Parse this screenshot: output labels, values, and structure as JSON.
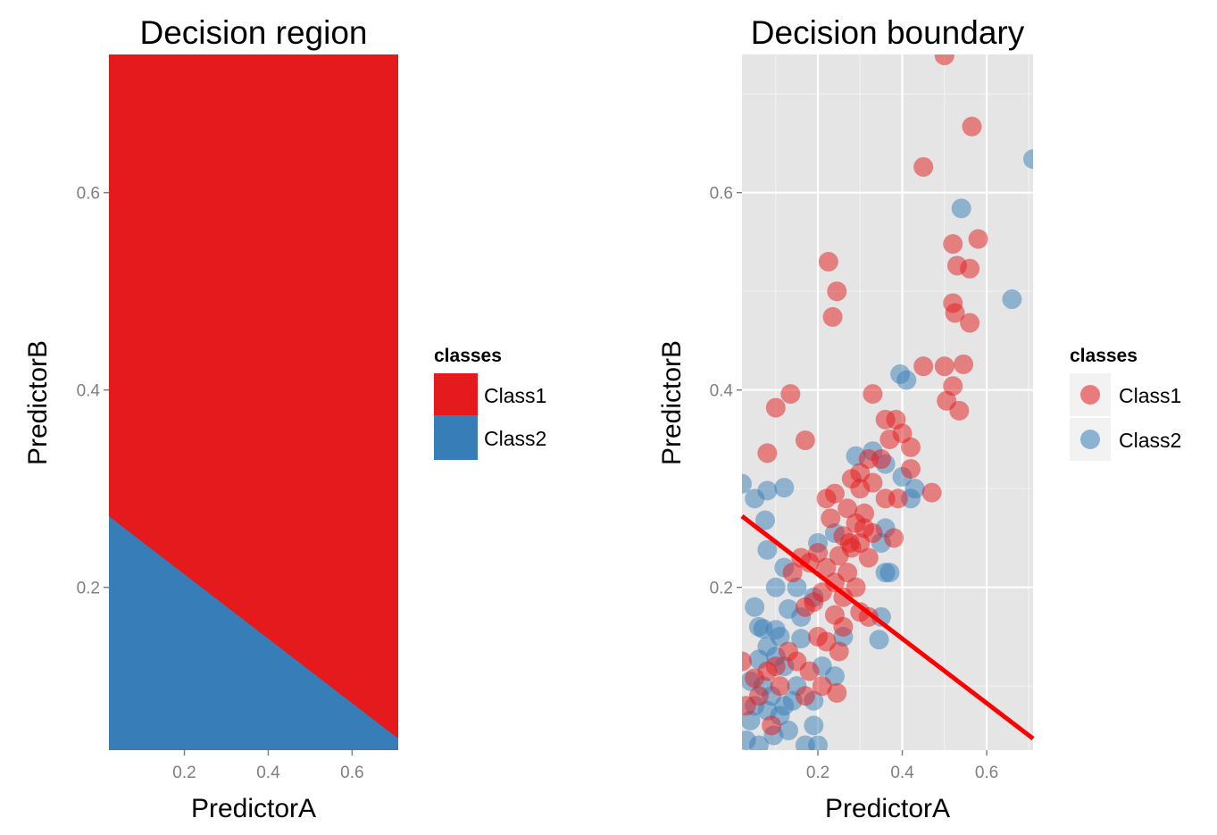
{
  "colors": {
    "class1": "#e41a1c",
    "class2": "#377eb8",
    "boundary": "#ff0000",
    "panel_bg": "#e5e5e5",
    "grid": "#ffffff",
    "tick_text": "#7f7f7f"
  },
  "chart_data": [
    {
      "type": "heatmap",
      "title": "Decision region",
      "xlabel": "PredictorA",
      "ylabel": "PredictorB",
      "xlim": [
        0.02,
        0.71
      ],
      "ylim": [
        0.035,
        0.74
      ],
      "x_ticks": [
        0.2,
        0.4,
        0.6
      ],
      "y_ticks": [
        0.2,
        0.4,
        0.6
      ],
      "x_tick_labels": [
        "0.2",
        "0.4",
        "0.6"
      ],
      "y_tick_labels": [
        "0.2",
        "0.4",
        "0.6"
      ],
      "boundary_line": {
        "intercept": 0.2786,
        "slope": -0.3266
      },
      "regions": [
        {
          "name": "Class1",
          "side": "above",
          "color": "#e41a1c"
        },
        {
          "name": "Class2",
          "side": "below",
          "color": "#377eb8"
        }
      ],
      "legend": {
        "title": "classes",
        "entries": [
          "Class1",
          "Class2"
        ],
        "position": "right"
      }
    },
    {
      "type": "scatter",
      "title": "Decision boundary",
      "xlabel": "PredictorA",
      "ylabel": "PredictorB",
      "xlim": [
        0.02,
        0.71
      ],
      "ylim": [
        0.035,
        0.74
      ],
      "x_ticks": [
        0.2,
        0.4,
        0.6
      ],
      "y_ticks": [
        0.2,
        0.4,
        0.6
      ],
      "x_tick_labels": [
        "0.2",
        "0.4",
        "0.6"
      ],
      "y_tick_labels": [
        "0.2",
        "0.4",
        "0.6"
      ],
      "grid": true,
      "boundary_line": {
        "intercept": 0.2786,
        "slope": -0.3266
      },
      "legend": {
        "title": "classes",
        "entries": [
          "Class1",
          "Class2"
        ],
        "position": "right"
      },
      "series": [
        {
          "name": "Class1",
          "color": "#e41a1c",
          "points": [
            [
              0.5,
              0.739
            ],
            [
              0.565,
              0.667
            ],
            [
              0.45,
              0.626
            ],
            [
              0.58,
              0.553
            ],
            [
              0.52,
              0.548
            ],
            [
              0.53,
              0.526
            ],
            [
              0.56,
              0.523
            ],
            [
              0.52,
              0.488
            ],
            [
              0.525,
              0.478
            ],
            [
              0.56,
              0.468
            ],
            [
              0.225,
              0.53
            ],
            [
              0.245,
              0.5
            ],
            [
              0.235,
              0.474
            ],
            [
              0.45,
              0.424
            ],
            [
              0.5,
              0.424
            ],
            [
              0.545,
              0.426
            ],
            [
              0.52,
              0.404
            ],
            [
              0.505,
              0.389
            ],
            [
              0.535,
              0.379
            ],
            [
              0.135,
              0.396
            ],
            [
              0.1,
              0.382
            ],
            [
              0.33,
              0.396
            ],
            [
              0.385,
              0.37
            ],
            [
              0.36,
              0.37
            ],
            [
              0.4,
              0.356
            ],
            [
              0.42,
              0.342
            ],
            [
              0.08,
              0.336
            ],
            [
              0.17,
              0.349
            ],
            [
              0.37,
              0.35
            ],
            [
              0.35,
              0.33
            ],
            [
              0.32,
              0.33
            ],
            [
              0.3,
              0.316
            ],
            [
              0.28,
              0.31
            ],
            [
              0.33,
              0.306
            ],
            [
              0.42,
              0.32
            ],
            [
              0.47,
              0.296
            ],
            [
              0.36,
              0.29
            ],
            [
              0.39,
              0.29
            ],
            [
              0.3,
              0.3
            ],
            [
              0.24,
              0.295
            ],
            [
              0.22,
              0.29
            ],
            [
              0.27,
              0.28
            ],
            [
              0.31,
              0.275
            ],
            [
              0.23,
              0.27
            ],
            [
              0.29,
              0.265
            ],
            [
              0.26,
              0.252
            ],
            [
              0.3,
              0.245
            ],
            [
              0.33,
              0.255
            ],
            [
              0.38,
              0.25
            ],
            [
              0.28,
              0.24
            ],
            [
              0.25,
              0.232
            ],
            [
              0.32,
              0.23
            ],
            [
              0.2,
              0.235
            ],
            [
              0.16,
              0.23
            ],
            [
              0.18,
              0.225
            ],
            [
              0.22,
              0.22
            ],
            [
              0.27,
              0.215
            ],
            [
              0.14,
              0.215
            ],
            [
              0.24,
              0.205
            ],
            [
              0.29,
              0.2
            ],
            [
              0.21,
              0.195
            ],
            [
              0.26,
              0.19
            ],
            [
              0.19,
              0.185
            ],
            [
              0.17,
              0.18
            ],
            [
              0.3,
              0.175
            ],
            [
              0.24,
              0.172
            ],
            [
              0.32,
              0.17
            ],
            [
              0.2,
              0.15
            ],
            [
              0.26,
              0.16
            ],
            [
              0.13,
              0.135
            ],
            [
              0.15,
              0.125
            ],
            [
              0.08,
              0.115
            ],
            [
              0.1,
              0.12
            ],
            [
              0.18,
              0.115
            ],
            [
              0.25,
              0.135
            ],
            [
              0.02,
              0.125
            ],
            [
              0.05,
              0.108
            ],
            [
              0.03,
              0.08
            ],
            [
              0.09,
              0.06
            ],
            [
              0.17,
              0.09
            ],
            [
              0.245,
              0.093
            ],
            [
              0.21,
              0.1
            ],
            [
              0.06,
              0.09
            ],
            [
              0.11,
              0.1
            ],
            [
              0.22,
              0.145
            ],
            [
              0.275,
              0.245
            ],
            [
              0.31,
              0.26
            ]
          ]
        },
        {
          "name": "Class2",
          "color": "#377eb8",
          "points": [
            [
              0.71,
              0.634
            ],
            [
              0.54,
              0.584
            ],
            [
              0.66,
              0.492
            ],
            [
              0.395,
              0.416
            ],
            [
              0.41,
              0.41
            ],
            [
              0.02,
              0.305
            ],
            [
              0.08,
              0.298
            ],
            [
              0.12,
              0.301
            ],
            [
              0.05,
              0.29
            ],
            [
              0.075,
              0.268
            ],
            [
              0.08,
              0.238
            ],
            [
              0.29,
              0.333
            ],
            [
              0.33,
              0.338
            ],
            [
              0.36,
              0.325
            ],
            [
              0.4,
              0.312
            ],
            [
              0.43,
              0.3
            ],
            [
              0.42,
              0.29
            ],
            [
              0.36,
              0.26
            ],
            [
              0.35,
              0.245
            ],
            [
              0.36,
              0.215
            ],
            [
              0.37,
              0.215
            ],
            [
              0.24,
              0.255
            ],
            [
              0.2,
              0.245
            ],
            [
              0.1,
              0.2
            ],
            [
              0.12,
              0.22
            ],
            [
              0.15,
              0.2
            ],
            [
              0.19,
              0.19
            ],
            [
              0.13,
              0.178
            ],
            [
              0.16,
              0.17
            ],
            [
              0.05,
              0.18
            ],
            [
              0.06,
              0.16
            ],
            [
              0.07,
              0.158
            ],
            [
              0.1,
              0.157
            ],
            [
              0.08,
              0.14
            ],
            [
              0.06,
              0.127
            ],
            [
              0.1,
              0.13
            ],
            [
              0.12,
              0.12
            ],
            [
              0.04,
              0.105
            ],
            [
              0.07,
              0.1
            ],
            [
              0.09,
              0.09
            ],
            [
              0.12,
              0.08
            ],
            [
              0.15,
              0.1
            ],
            [
              0.05,
              0.08
            ],
            [
              0.08,
              0.075
            ],
            [
              0.11,
              0.07
            ],
            [
              0.14,
              0.085
            ],
            [
              0.19,
              0.085
            ],
            [
              0.21,
              0.12
            ],
            [
              0.24,
              0.11
            ],
            [
              0.26,
              0.15
            ],
            [
              0.35,
              0.17
            ],
            [
              0.345,
              0.147
            ],
            [
              0.03,
              0.045
            ],
            [
              0.06,
              0.04
            ],
            [
              0.13,
              0.055
            ],
            [
              0.19,
              0.06
            ],
            [
              0.2,
              0.04
            ],
            [
              0.17,
              0.04
            ],
            [
              0.04,
              0.065
            ],
            [
              0.095,
              0.05
            ],
            [
              0.16,
              0.148
            ],
            [
              0.11,
              0.15
            ]
          ]
        }
      ]
    }
  ]
}
